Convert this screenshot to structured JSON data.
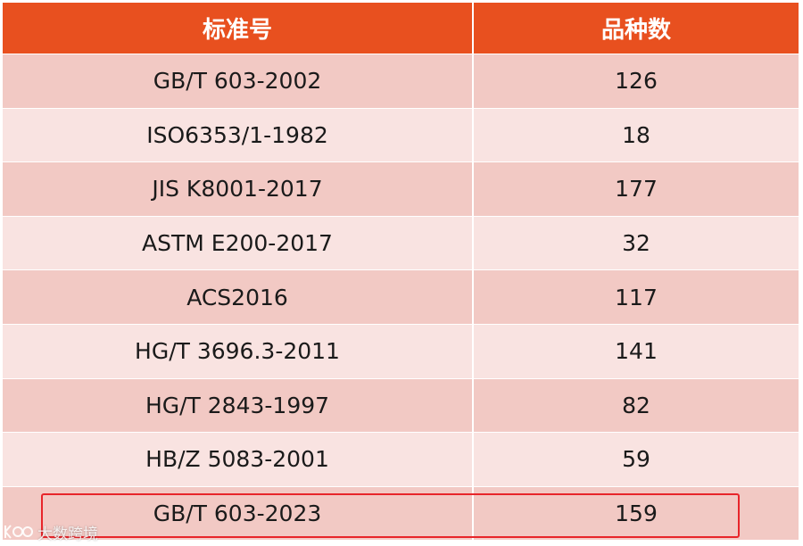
{
  "table": {
    "headers": [
      "标准号",
      "品种数"
    ],
    "rows": [
      {
        "standard": "GB/T 603-2002",
        "count": "126"
      },
      {
        "standard": "ISO6353/1-1982",
        "count": "18"
      },
      {
        "standard": "JIS K8001-2017",
        "count": "177"
      },
      {
        "standard": "ASTM E200-2017",
        "count": "32"
      },
      {
        "standard": "ACS2016",
        "count": "117"
      },
      {
        "standard": "HG/T 3696.3-2011",
        "count": "141"
      },
      {
        "standard": "HG/T 2843-1997",
        "count": "82"
      },
      {
        "standard": "HB/Z 5083-2001",
        "count": "59"
      },
      {
        "standard": "GB/T 603-2023",
        "count": "159"
      }
    ],
    "highlighted_row": 8
  },
  "colors": {
    "header_bg": "#e8501f",
    "row_odd": "#f2c9c4",
    "row_even": "#f9e3e1",
    "highlight_border": "#e8252a"
  },
  "watermark": {
    "text": "大数跨境",
    "icon": "brand-logo-icon"
  }
}
